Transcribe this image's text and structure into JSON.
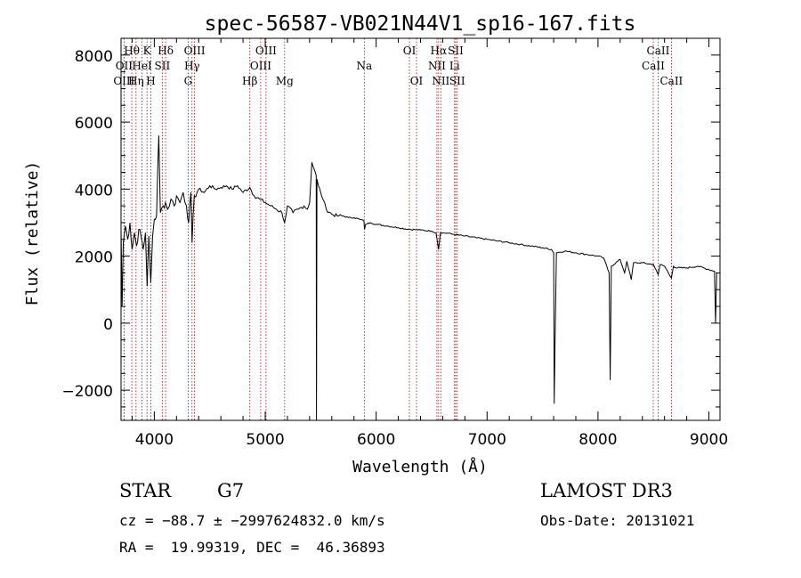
{
  "chart_data": {
    "type": "line",
    "title": "spec-56587-VB021N44V1_sp16-167.fits",
    "xlabel": "Wavelength (Å)",
    "ylabel": "Flux (relative)",
    "xlim": [
      3700,
      9100
    ],
    "ylim": [
      -2900,
      8500
    ],
    "x_ticks": [
      4000,
      5000,
      6000,
      7000,
      8000,
      9000
    ],
    "y_ticks": [
      -2000,
      0,
      2000,
      4000,
      6000,
      8000
    ],
    "x_tick_labels": [
      "4000",
      "5000",
      "6000",
      "7000",
      "8000",
      "9000"
    ],
    "y_tick_labels": [
      "−2000",
      "0",
      "2000",
      "4000",
      "6000",
      "8000"
    ],
    "series": [
      {
        "name": "flux",
        "points": [
          [
            3700,
            2800
          ],
          [
            3710,
            500
          ],
          [
            3720,
            2400
          ],
          [
            3740,
            2900
          ],
          [
            3760,
            2500
          ],
          [
            3780,
            3000
          ],
          [
            3800,
            2200
          ],
          [
            3820,
            2700
          ],
          [
            3840,
            2300
          ],
          [
            3860,
            2800
          ],
          [
            3880,
            2600
          ],
          [
            3900,
            2200
          ],
          [
            3920,
            2700
          ],
          [
            3935,
            1100
          ],
          [
            3950,
            2600
          ],
          [
            3968,
            1200
          ],
          [
            3985,
            2600
          ],
          [
            4000,
            3100
          ],
          [
            4020,
            3200
          ],
          [
            4040,
            5600
          ],
          [
            4055,
            3300
          ],
          [
            4080,
            3500
          ],
          [
            4100,
            3600
          ],
          [
            4120,
            3400
          ],
          [
            4150,
            3700
          ],
          [
            4180,
            3500
          ],
          [
            4200,
            3800
          ],
          [
            4230,
            3600
          ],
          [
            4260,
            3900
          ],
          [
            4290,
            3500
          ],
          [
            4310,
            3000
          ],
          [
            4330,
            3900
          ],
          [
            4340,
            2400
          ],
          [
            4360,
            3800
          ],
          [
            4400,
            4000
          ],
          [
            4450,
            3900
          ],
          [
            4500,
            4100
          ],
          [
            4550,
            4000
          ],
          [
            4600,
            4050
          ],
          [
            4650,
            4100
          ],
          [
            4700,
            4000
          ],
          [
            4750,
            4100
          ],
          [
            4800,
            3900
          ],
          [
            4861,
            4050
          ],
          [
            4900,
            3800
          ],
          [
            4950,
            3700
          ],
          [
            5000,
            3600
          ],
          [
            5050,
            3500
          ],
          [
            5100,
            3400
          ],
          [
            5150,
            3300
          ],
          [
            5175,
            3000
          ],
          [
            5200,
            3500
          ],
          [
            5250,
            3300
          ],
          [
            5300,
            3400
          ],
          [
            5350,
            3500
          ],
          [
            5380,
            3400
          ],
          [
            5400,
            3600
          ],
          [
            5420,
            4800
          ],
          [
            5440,
            4600
          ],
          [
            5460,
            4400
          ],
          [
            5462,
            -2900
          ],
          [
            5466,
            4300
          ],
          [
            5480,
            4100
          ],
          [
            5500,
            3900
          ],
          [
            5520,
            3700
          ],
          [
            5550,
            3400
          ],
          [
            5600,
            3250
          ],
          [
            5650,
            3200
          ],
          [
            5700,
            3200
          ],
          [
            5750,
            3150
          ],
          [
            5800,
            3150
          ],
          [
            5850,
            3100
          ],
          [
            5890,
            3050
          ],
          [
            5895,
            2800
          ],
          [
            5905,
            2950
          ],
          [
            5950,
            3000
          ],
          [
            6000,
            2950
          ],
          [
            6100,
            2900
          ],
          [
            6200,
            2850
          ],
          [
            6300,
            2800
          ],
          [
            6400,
            2780
          ],
          [
            6500,
            2750
          ],
          [
            6540,
            2700
          ],
          [
            6563,
            2200
          ],
          [
            6580,
            2700
          ],
          [
            6650,
            2680
          ],
          [
            6700,
            2650
          ],
          [
            6800,
            2600
          ],
          [
            6900,
            2550
          ],
          [
            7000,
            2500
          ],
          [
            7100,
            2450
          ],
          [
            7200,
            2400
          ],
          [
            7300,
            2350
          ],
          [
            7400,
            2300
          ],
          [
            7500,
            2250
          ],
          [
            7580,
            2200
          ],
          [
            7600,
            2100
          ],
          [
            7605,
            -2400
          ],
          [
            7625,
            2100
          ],
          [
            7700,
            2150
          ],
          [
            7800,
            2100
          ],
          [
            7900,
            2050
          ],
          [
            8000,
            2000
          ],
          [
            8050,
            1950
          ],
          [
            8100,
            1500
          ],
          [
            8110,
            -1700
          ],
          [
            8120,
            1700
          ],
          [
            8200,
            1900
          ],
          [
            8240,
            1500
          ],
          [
            8260,
            1850
          ],
          [
            8300,
            1300
          ],
          [
            8320,
            1800
          ],
          [
            8400,
            1800
          ],
          [
            8500,
            1750
          ],
          [
            8542,
            1450
          ],
          [
            8560,
            1750
          ],
          [
            8600,
            1700
          ],
          [
            8662,
            1350
          ],
          [
            8680,
            1700
          ],
          [
            8700,
            1650
          ],
          [
            8800,
            1650
          ],
          [
            8900,
            1700
          ],
          [
            9000,
            1600
          ],
          [
            9050,
            1550
          ],
          [
            9060,
            0
          ],
          [
            9070,
            1500
          ]
        ]
      }
    ],
    "line_markers": [
      {
        "label": "Hθ",
        "x": 3797,
        "row": 1
      },
      {
        "label": "OII",
        "x": 3727,
        "row": 2
      },
      {
        "label": "OIII",
        "x": 3727,
        "row": 3
      },
      {
        "label": "K",
        "x": 3934,
        "row": 1
      },
      {
        "label": "HeI",
        "x": 3889,
        "row": 2
      },
      {
        "label": "Hη",
        "x": 3835,
        "row": 3
      },
      {
        "label": "SII",
        "x": 4072,
        "row": 2
      },
      {
        "label": "H",
        "x": 3969,
        "row": 3
      },
      {
        "label": "Hδ",
        "x": 4102,
        "row": 1
      },
      {
        "label": "OIII",
        "x": 4363,
        "row": 1
      },
      {
        "label": "Hγ",
        "x": 4340,
        "row": 2
      },
      {
        "label": "G",
        "x": 4305,
        "row": 3
      },
      {
        "label": "Hβ",
        "x": 4861,
        "row": 3
      },
      {
        "label": "OIII",
        "x": 5007,
        "row": 1
      },
      {
        "label": "OIII",
        "x": 4959,
        "row": 2
      },
      {
        "label": "Mg",
        "x": 5175,
        "row": 3
      },
      {
        "label": "Na",
        "x": 5893,
        "row": 2
      },
      {
        "label": "OI",
        "x": 6300,
        "row": 1
      },
      {
        "label": "OI",
        "x": 6364,
        "row": 3
      },
      {
        "label": "Hα",
        "x": 6563,
        "row": 1
      },
      {
        "label": "NII",
        "x": 6548,
        "row": 2
      },
      {
        "label": "NII",
        "x": 6583,
        "row": 3
      },
      {
        "label": "SII",
        "x": 6717,
        "row": 1
      },
      {
        "label": "Li",
        "x": 6707,
        "row": 2
      },
      {
        "label": "SII",
        "x": 6731,
        "row": 3
      },
      {
        "label": "CaII",
        "x": 8542,
        "row": 1
      },
      {
        "label": "CaII",
        "x": 8498,
        "row": 2
      },
      {
        "label": "CaII",
        "x": 8662,
        "row": 3
      }
    ]
  },
  "info": {
    "object_type": "STAR",
    "subclass": "G7",
    "survey": "LAMOST DR3",
    "cz_line": "cz = −88.7 ± −2997624832.0 km/s",
    "obs_date_line": "Obs-Date: 20131021",
    "coords_line": "RA =  19.99319, DEC =  46.36893"
  }
}
